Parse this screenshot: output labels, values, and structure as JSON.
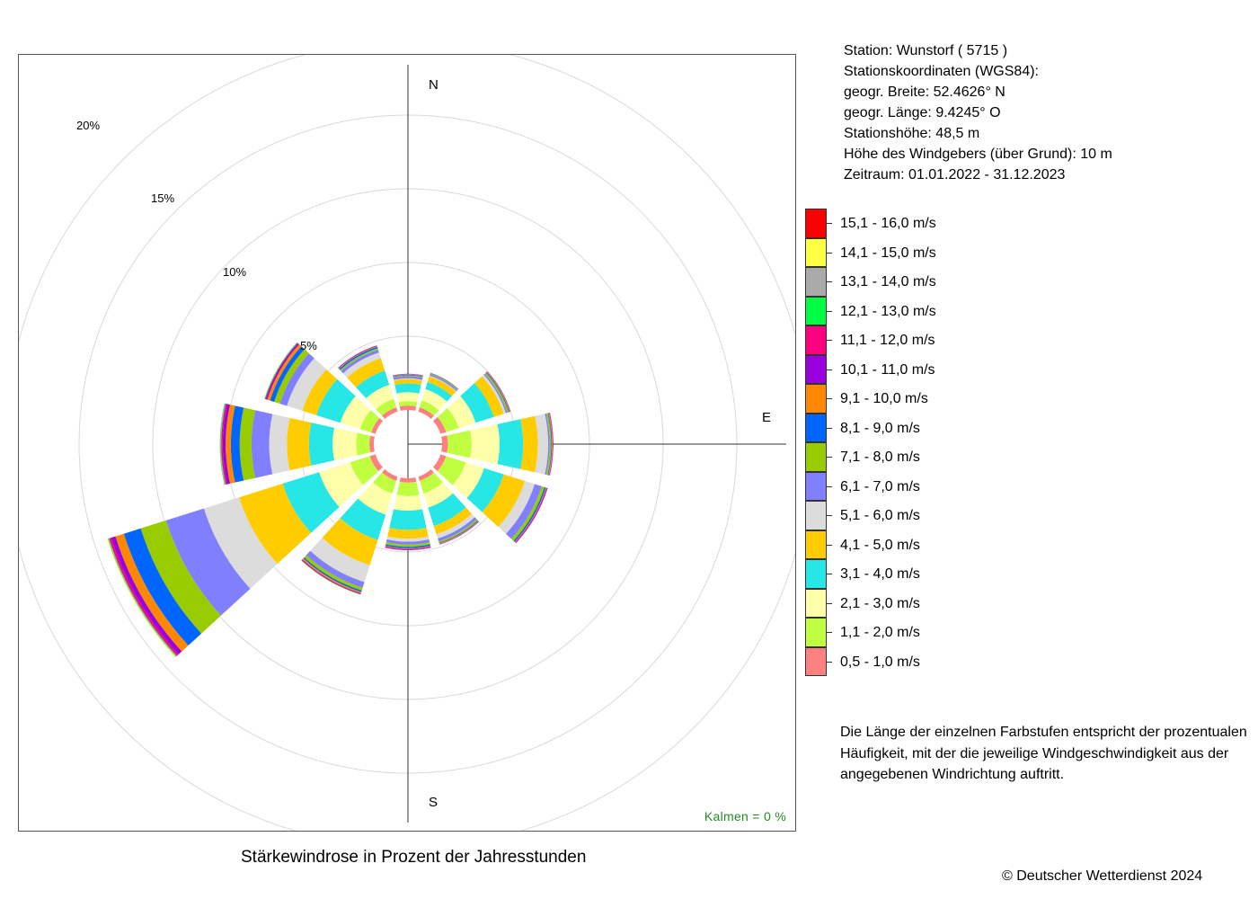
{
  "station": {
    "line1": "Station:  Wunstorf  ( 5715 )",
    "line2": "Stationskoordinaten (WGS84):",
    "line3": "geogr. Breite: 52.4626° N",
    "line4": "geogr. Länge:   9.4245° O",
    "line5": "Stationshöhe: 48,5 m",
    "line6": "Höhe des Windgebers (über Grund): 10 m",
    "line7": "Zeitraum: 01.01.2022 - 31.12.2023"
  },
  "directions": {
    "n": "N",
    "e": "E",
    "s": "S"
  },
  "rings": {
    "r5": "5%",
    "r10": "10%",
    "r15": "15%",
    "r20": "20%"
  },
  "calm_text": "Kalmen  =  0 %",
  "chart_title": "Stärkewindrose in Prozent der Jahresstunden",
  "note": "Die Länge der einzelnen Farbstufen entspricht der prozentualen Häufigkeit, mit der die jeweilige Windgeschwindigkeit aus der angegebenen Windrichtung auftritt.",
  "copyright": "© Deutscher Wetterdienst  2024",
  "chart_data": {
    "type": "wind-rose",
    "unit": "%",
    "radial_ticks": [
      5,
      10,
      15,
      20
    ],
    "calm_percent": 0,
    "sectors_deg": [
      0,
      30,
      60,
      90,
      120,
      150,
      180,
      210,
      240,
      270,
      300,
      330
    ],
    "classes": [
      {
        "name": "0,5 - 1,0 m/s",
        "color": "#FF8080"
      },
      {
        "name": "1,1 - 2,0 m/s",
        "color": "#BFFF3F"
      },
      {
        "name": "2,1 - 3,0 m/s",
        "color": "#FFFFAA"
      },
      {
        "name": "3,1 - 4,0 m/s",
        "color": "#26E6E6"
      },
      {
        "name": "4,1 - 5,0 m/s",
        "color": "#FFCC00"
      },
      {
        "name": "5,1 - 6,0 m/s",
        "color": "#DCDCDC"
      },
      {
        "name": "6,1 - 7,0 m/s",
        "color": "#8080FF"
      },
      {
        "name": "7,1 - 8,0 m/s",
        "color": "#99CC00"
      },
      {
        "name": "8,1 - 9,0 m/s",
        "color": "#0066FF"
      },
      {
        "name": "9,1 - 10,0 m/s",
        "color": "#FF8800"
      },
      {
        "name": "10,1 - 11,0 m/s",
        "color": "#9900DD"
      },
      {
        "name": "11,1 - 12,0 m/s",
        "color": "#FF0080"
      },
      {
        "name": "12,1 - 13,0 m/s",
        "color": "#00FF44"
      },
      {
        "name": "13,1 - 14,0 m/s",
        "color": "#AAAAAA"
      },
      {
        "name": "14,1 - 15,0 m/s",
        "color": "#FFFF44"
      },
      {
        "name": "15,1 - 16,0 m/s",
        "color": "#FF0000"
      }
    ],
    "values": [
      [
        0.3,
        0.3,
        0.6,
        0.6,
        0.3,
        0.05,
        0.15,
        0.05,
        0.05,
        0.03,
        0.02,
        0,
        0,
        0,
        0,
        0
      ],
      [
        0.3,
        0.5,
        0.8,
        0.5,
        0.4,
        0.05,
        0.1,
        0.05,
        0.03,
        0.02,
        0.01,
        0,
        0,
        0,
        0,
        0
      ],
      [
        0.4,
        0.9,
        1.2,
        1.3,
        0.7,
        0.15,
        0.1,
        0.1,
        0.05,
        0.05,
        0.03,
        0,
        0,
        0,
        0,
        0
      ],
      [
        0.4,
        1.6,
        1.9,
        1.6,
        1.0,
        0.7,
        0.1,
        0.1,
        0.05,
        0.05,
        0.03,
        0.02,
        0,
        0,
        0,
        0
      ],
      [
        0.4,
        1.4,
        1.3,
        1.4,
        1.5,
        0.7,
        0.5,
        0.2,
        0.1,
        0.05,
        0.05,
        0.03,
        0,
        0,
        0,
        0
      ],
      [
        0.3,
        0.9,
        1.0,
        1.3,
        0.6,
        0.3,
        0.2,
        0.1,
        0.05,
        0.05,
        0.03,
        0,
        0,
        0,
        0,
        0
      ],
      [
        0.3,
        0.9,
        1.0,
        1.3,
        0.6,
        0.2,
        0.2,
        0.15,
        0.1,
        0.05,
        0.05,
        0.03,
        0,
        0,
        0,
        0
      ],
      [
        0.3,
        0.9,
        1.5,
        1.8,
        1.8,
        1.2,
        0.4,
        0.2,
        0.1,
        0.1,
        0.05,
        0.03,
        0.02,
        0,
        0,
        0
      ],
      [
        0.4,
        1.4,
        2.2,
        2.6,
        3.1,
        2.5,
        2.7,
        1.8,
        1.2,
        0.6,
        0.3,
        0.15,
        0.05,
        0.05,
        0.05,
        0
      ],
      [
        0.3,
        0.9,
        1.6,
        1.6,
        1.5,
        1.2,
        1.2,
        0.8,
        0.6,
        0.35,
        0.2,
        0.1,
        0.05,
        0.05,
        0,
        0
      ],
      [
        0.3,
        0.8,
        1.4,
        1.7,
        1.0,
        1.1,
        0.5,
        0.4,
        0.3,
        0.2,
        0.1,
        0.05,
        0.05,
        0,
        0,
        0
      ],
      [
        0.3,
        0.6,
        1.0,
        1.0,
        0.9,
        0.4,
        0.2,
        0.1,
        0.1,
        0.05,
        0.05,
        0,
        0,
        0,
        0,
        0
      ]
    ]
  }
}
